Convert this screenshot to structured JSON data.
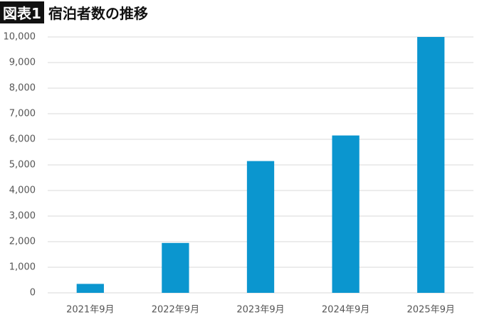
{
  "chart_data": {
    "type": "bar",
    "figure_label": "図表1",
    "title": "宿泊者数の推移",
    "categories": [
      "2021年9月",
      "2022年9月",
      "2023年9月",
      "2024年9月",
      "2025年9月"
    ],
    "values": [
      350,
      1950,
      5150,
      6150,
      10000
    ],
    "color": "#0b96cf",
    "ylim": [
      0,
      10000
    ],
    "yticks": [
      0,
      {
        "value": 1000,
        "label": "1,000"
      },
      {
        "value": 2000,
        "label": "2,000"
      },
      {
        "value": 3000,
        "label": "3,000"
      },
      {
        "value": 4000,
        "label": "4,000"
      },
      {
        "value": 5000,
        "label": "5,000"
      },
      {
        "value": 6000,
        "label": "6,000"
      },
      {
        "value": 7000,
        "label": "7,000"
      },
      {
        "value": 8000,
        "label": "8,000"
      },
      {
        "value": 9000,
        "label": "9,000"
      },
      {
        "value": 10000,
        "label": "10,000"
      }
    ],
    "grid": true
  }
}
